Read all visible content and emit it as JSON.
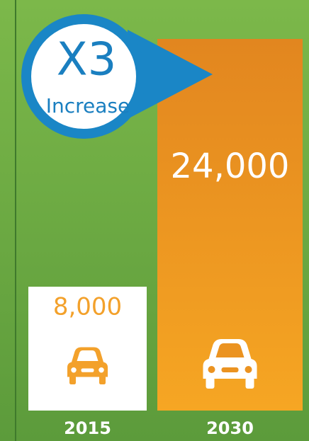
{
  "chart_data": {
    "type": "bar",
    "annotation": {
      "title": "X3",
      "subtitle": "Increase"
    },
    "categories": [
      "2015",
      "2030"
    ],
    "values": [
      8000,
      24000
    ],
    "value_labels": [
      "8,000",
      "24,000"
    ],
    "colors": [
      "#ffffff",
      "#f19a22"
    ],
    "label_colors": [
      "#f3a12b",
      "#ffffff"
    ]
  }
}
